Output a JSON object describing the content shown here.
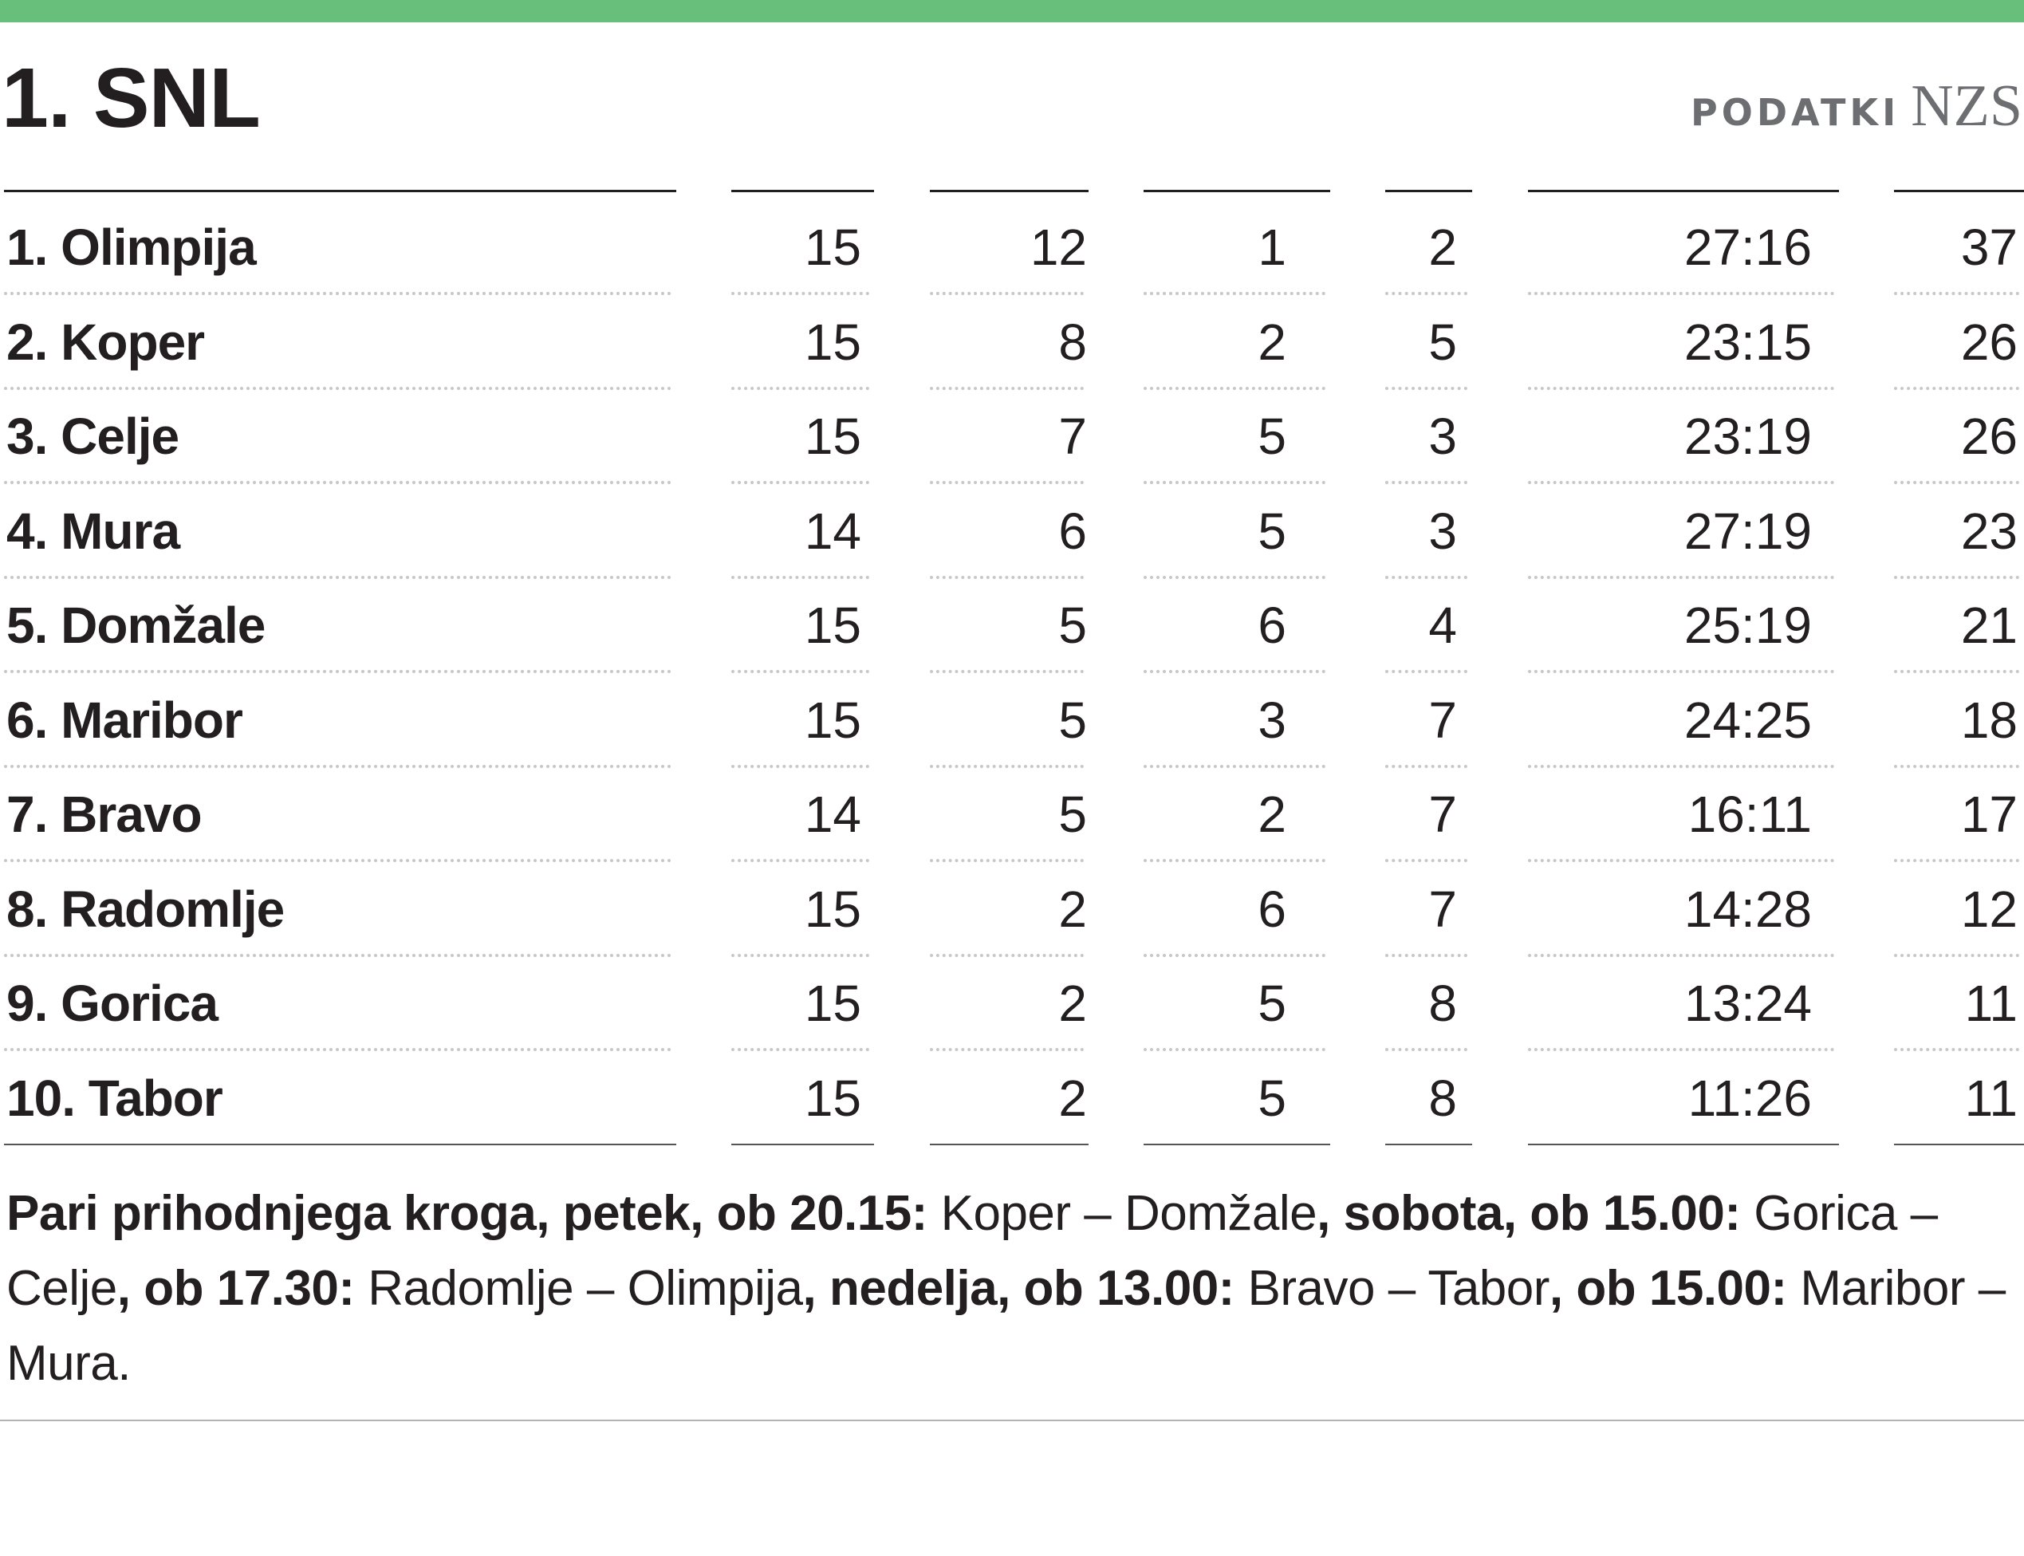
{
  "header": {
    "title": "1. SNL",
    "source_label": "PODATKI",
    "source_org": "NZS",
    "accent_color": "#68bf7b"
  },
  "table": {
    "rows": [
      {
        "team": "1. Olimpija",
        "cells": [
          "15",
          "12",
          "1",
          "2",
          "27:16",
          "37"
        ]
      },
      {
        "team": "2. Koper",
        "cells": [
          "15",
          "8",
          "2",
          "5",
          "23:15",
          "26"
        ]
      },
      {
        "team": "3. Celje",
        "cells": [
          "15",
          "7",
          "5",
          "3",
          "23:19",
          "26"
        ]
      },
      {
        "team": "4. Mura",
        "cells": [
          "14",
          "6",
          "5",
          "3",
          "27:19",
          "23"
        ]
      },
      {
        "team": "5. Domžale",
        "cells": [
          "15",
          "5",
          "6",
          "4",
          "25:19",
          "21"
        ]
      },
      {
        "team": "6. Maribor",
        "cells": [
          "15",
          "5",
          "3",
          "7",
          "24:25",
          "18"
        ]
      },
      {
        "team": "7. Bravo",
        "cells": [
          "14",
          "5",
          "2",
          "7",
          "16:11",
          "17"
        ]
      },
      {
        "team": "8. Radomlje",
        "cells": [
          "15",
          "2",
          "6",
          "7",
          "14:28",
          "12"
        ]
      },
      {
        "team": "9. Gorica",
        "cells": [
          "15",
          "2",
          "5",
          "8",
          "13:24",
          "11"
        ]
      },
      {
        "team": "10. Tabor",
        "cells": [
          "15",
          "2",
          "5",
          "8",
          "11:26",
          "11"
        ]
      }
    ]
  },
  "note": {
    "segments": [
      {
        "text": "Pari prihodnjega kroga, petek, ob 20.15:",
        "bold": true
      },
      {
        "text": " Koper – Domžale",
        "bold": false
      },
      {
        "text": ", sobota, ob 15.00:",
        "bold": true
      },
      {
        "text": " Gorica – Celje",
        "bold": false
      },
      {
        "text": ", ob 17.30:",
        "bold": true
      },
      {
        "text": " Radomlje – Olimpija",
        "bold": false
      },
      {
        "text": ", nedelja, ob 13.00:",
        "bold": true
      },
      {
        "text": " Bravo – Tabor",
        "bold": false
      },
      {
        "text": ", ob 15.00:",
        "bold": true
      },
      {
        "text": " Maribor – Mura.",
        "bold": false
      }
    ]
  }
}
